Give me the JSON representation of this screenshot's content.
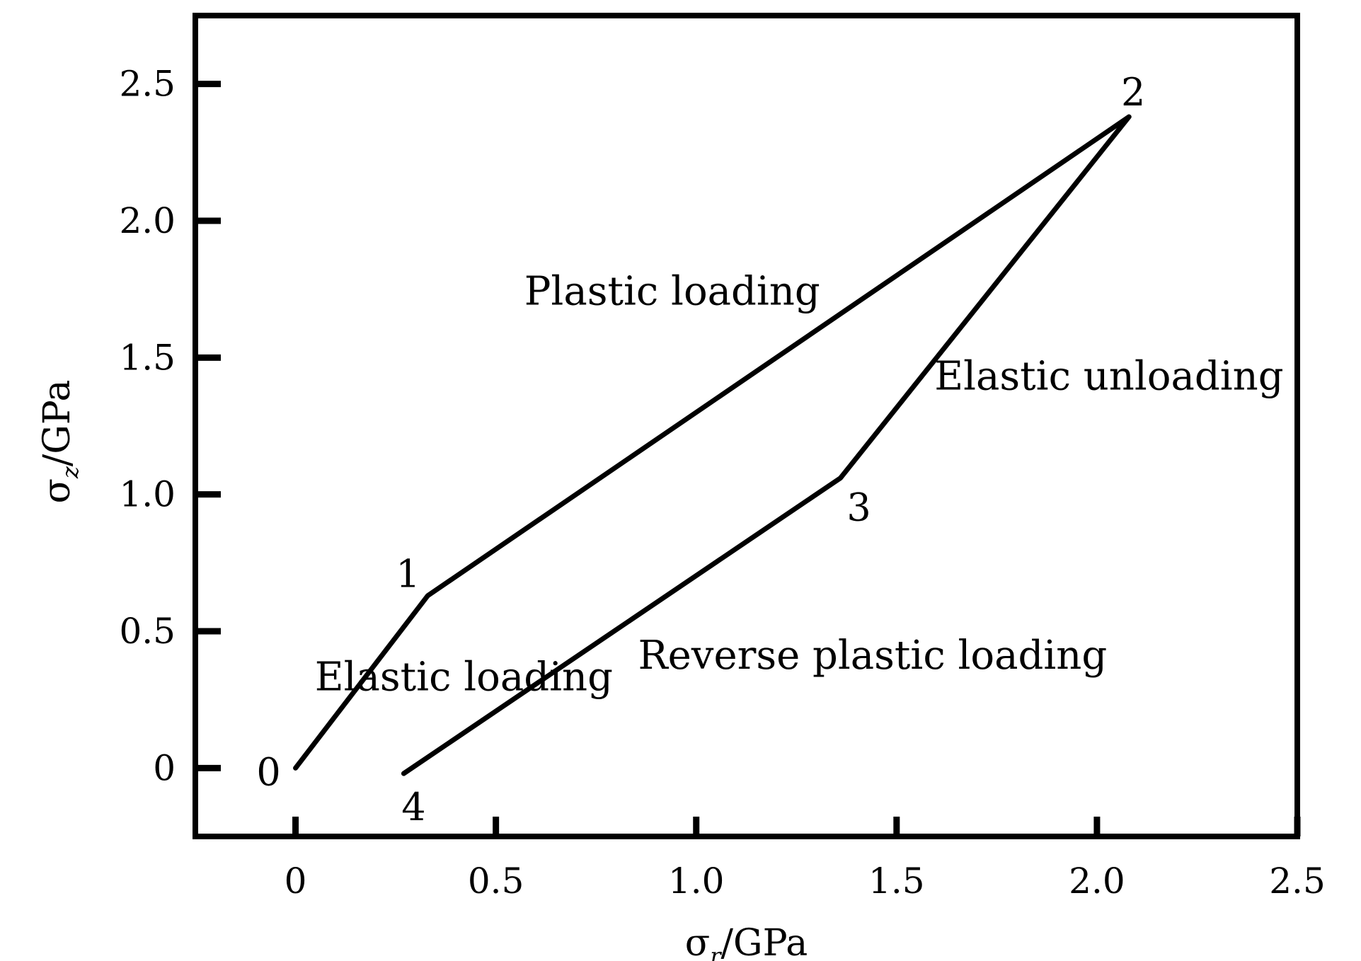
{
  "chart_data": {
    "type": "line",
    "title": "",
    "xlabel": "σr/GPa",
    "ylabel": "σz/GPa",
    "xlabel_parts": {
      "symbol": "σ",
      "subscript": "r",
      "unit": "/GPa"
    },
    "ylabel_parts": {
      "symbol": "σ",
      "subscript": "z",
      "unit": "/GPa"
    },
    "xlim": [
      -0.25,
      2.5
    ],
    "ylim": [
      -0.25,
      2.75
    ],
    "xticks": [
      0,
      0.5,
      1.0,
      1.5,
      2.0,
      2.5
    ],
    "yticks": [
      0,
      0.5,
      1.0,
      1.5,
      2.0,
      2.5
    ],
    "xtick_labels": [
      "0",
      "0.5",
      "1.0",
      "1.5",
      "2.0",
      "2.5"
    ],
    "ytick_labels": [
      "0",
      "0.5",
      "1.0",
      "1.5",
      "2.0",
      "2.5"
    ],
    "grid": false,
    "legend": "none",
    "line_color": "#000000",
    "series": [
      {
        "x": [
          0,
          0.33,
          2.08,
          1.36,
          0.27
        ],
        "y": [
          0,
          0.63,
          2.38,
          1.06,
          -0.02
        ]
      }
    ],
    "points": [
      {
        "label": "0",
        "x": 0,
        "y": 0
      },
      {
        "label": "1",
        "x": 0.33,
        "y": 0.63
      },
      {
        "label": "2",
        "x": 2.08,
        "y": 2.38
      },
      {
        "label": "3",
        "x": 1.36,
        "y": 1.06
      },
      {
        "label": "4",
        "x": 0.27,
        "y": -0.02
      }
    ],
    "annotations": [
      {
        "text": "Elastic loading",
        "x": 0.42,
        "y": 0.33
      },
      {
        "text": "Plastic loading",
        "x": 0.94,
        "y": 1.74
      },
      {
        "text": "Elastic unloading",
        "x": 2.03,
        "y": 1.43
      },
      {
        "text": "Reverse plastic loading",
        "x": 1.44,
        "y": 0.41
      }
    ]
  }
}
